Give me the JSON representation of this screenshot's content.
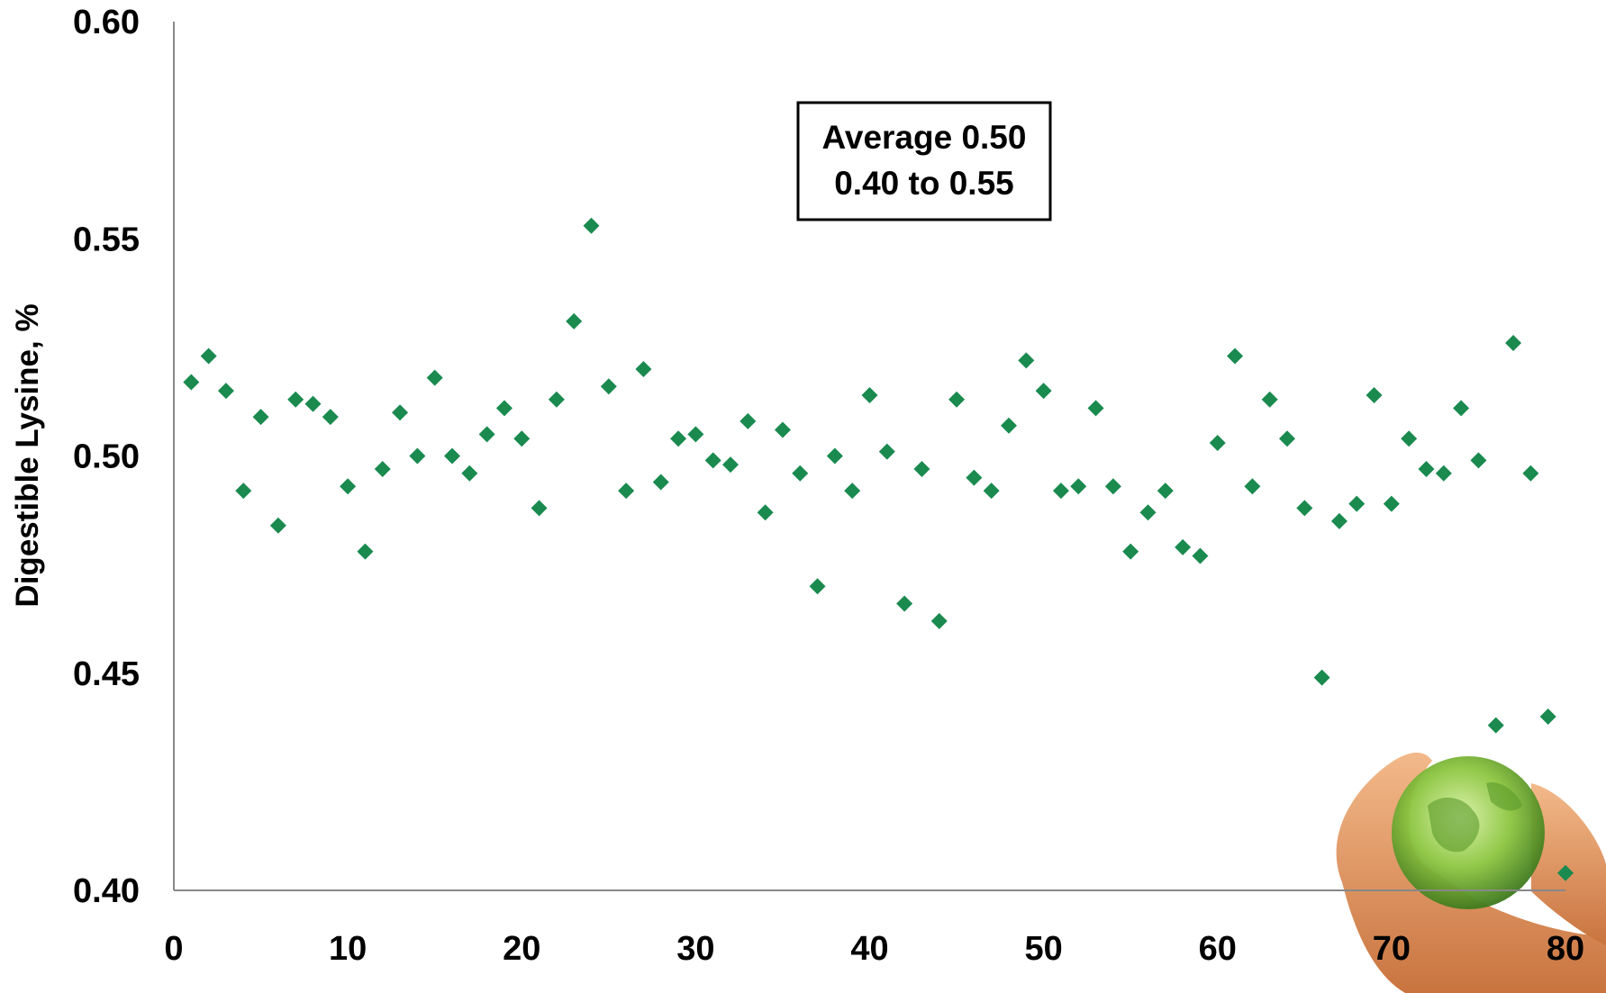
{
  "chart_data": {
    "type": "scatter",
    "ylabel": "Digestible Lysine, %",
    "xlabel": "",
    "xlim": [
      0,
      80
    ],
    "ylim": [
      0.4,
      0.6
    ],
    "xticks": [
      "0",
      "10",
      "20",
      "30",
      "40",
      "50",
      "60",
      "70",
      "80"
    ],
    "yticks": [
      "0.40",
      "0.45",
      "0.50",
      "0.55",
      "0.60"
    ],
    "grid": false,
    "marker": "diamond",
    "marker_color": "#1a8a4f",
    "annotation": {
      "line1": "Average 0.50",
      "line2": "0.40 to 0.55"
    },
    "decoration": "hands-holding-green-globe",
    "points": [
      [
        1,
        0.517
      ],
      [
        2,
        0.523
      ],
      [
        3,
        0.515
      ],
      [
        4,
        0.492
      ],
      [
        5,
        0.509
      ],
      [
        6,
        0.484
      ],
      [
        7,
        0.513
      ],
      [
        8,
        0.512
      ],
      [
        9,
        0.509
      ],
      [
        10,
        0.493
      ],
      [
        11,
        0.478
      ],
      [
        12,
        0.497
      ],
      [
        13,
        0.51
      ],
      [
        14,
        0.5
      ],
      [
        15,
        0.518
      ],
      [
        16,
        0.5
      ],
      [
        17,
        0.496
      ],
      [
        18,
        0.505
      ],
      [
        19,
        0.511
      ],
      [
        20,
        0.504
      ],
      [
        21,
        0.488
      ],
      [
        22,
        0.513
      ],
      [
        23,
        0.531
      ],
      [
        24,
        0.553
      ],
      [
        25,
        0.516
      ],
      [
        26,
        0.492
      ],
      [
        27,
        0.52
      ],
      [
        28,
        0.494
      ],
      [
        29,
        0.504
      ],
      [
        30,
        0.505
      ],
      [
        31,
        0.499
      ],
      [
        32,
        0.498
      ],
      [
        33,
        0.508
      ],
      [
        34,
        0.487
      ],
      [
        35,
        0.506
      ],
      [
        36,
        0.496
      ],
      [
        37,
        0.47
      ],
      [
        38,
        0.5
      ],
      [
        39,
        0.492
      ],
      [
        40,
        0.514
      ],
      [
        41,
        0.501
      ],
      [
        42,
        0.466
      ],
      [
        43,
        0.497
      ],
      [
        44,
        0.462
      ],
      [
        45,
        0.513
      ],
      [
        46,
        0.495
      ],
      [
        47,
        0.492
      ],
      [
        48,
        0.507
      ],
      [
        49,
        0.522
      ],
      [
        50,
        0.515
      ],
      [
        51,
        0.492
      ],
      [
        52,
        0.493
      ],
      [
        53,
        0.511
      ],
      [
        54,
        0.493
      ],
      [
        55,
        0.478
      ],
      [
        56,
        0.487
      ],
      [
        57,
        0.492
      ],
      [
        58,
        0.479
      ],
      [
        59,
        0.477
      ],
      [
        60,
        0.503
      ],
      [
        61,
        0.523
      ],
      [
        62,
        0.493
      ],
      [
        63,
        0.513
      ],
      [
        64,
        0.504
      ],
      [
        65,
        0.488
      ],
      [
        66,
        0.449
      ],
      [
        67,
        0.485
      ],
      [
        68,
        0.489
      ],
      [
        69,
        0.514
      ],
      [
        70,
        0.489
      ],
      [
        71,
        0.504
      ],
      [
        72,
        0.497
      ],
      [
        73,
        0.496
      ],
      [
        74,
        0.511
      ],
      [
        75,
        0.499
      ],
      [
        76,
        0.438
      ],
      [
        77,
        0.526
      ],
      [
        78,
        0.496
      ],
      [
        79,
        0.44
      ],
      [
        80,
        0.404
      ]
    ]
  }
}
